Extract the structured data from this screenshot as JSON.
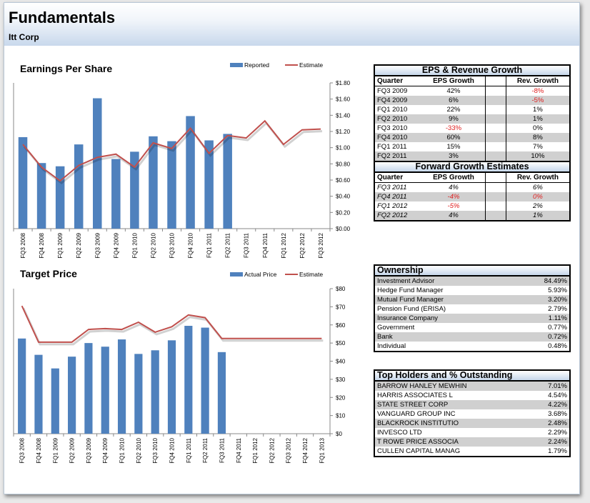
{
  "header": {
    "title": "Fundamentals",
    "subtitle": "Itt Corp"
  },
  "chart_data": [
    {
      "type": "bar",
      "title": "Earnings Per Share",
      "categories": [
        "FQ3 2008",
        "FQ4 2008",
        "FQ1 2009",
        "FQ2 2009",
        "FQ3 2009",
        "FQ4 2009",
        "FQ1 2010",
        "FQ2 2010",
        "FQ3 2010",
        "FQ4 2010",
        "FQ1 2011",
        "FQ2 2011",
        "FQ3 2011",
        "FQ4 2011",
        "FQ1 2012",
        "FQ2 2012",
        "FQ3 2012"
      ],
      "series": [
        {
          "name": "Reported",
          "kind": "bar",
          "color": "#4f81bd",
          "values": [
            1.13,
            0.81,
            0.77,
            1.04,
            1.61,
            0.86,
            0.95,
            1.14,
            1.08,
            1.39,
            1.09,
            1.17,
            null,
            null,
            null,
            null,
            null
          ]
        },
        {
          "name": "Estimate",
          "kind": "line",
          "color": "#c0504d",
          "values": [
            1.04,
            0.76,
            0.59,
            0.78,
            0.88,
            0.92,
            0.76,
            1.06,
            0.99,
            1.24,
            0.93,
            1.15,
            1.12,
            1.33,
            1.04,
            1.22,
            1.23
          ]
        }
      ],
      "ylim": [
        0,
        1.8
      ],
      "ystep": 0.2,
      "ytick_labels": [
        "$0.00",
        "$0.20",
        "$0.40",
        "$0.60",
        "$0.80",
        "$1.00",
        "$1.20",
        "$1.40",
        "$1.60",
        "$1.80"
      ],
      "legend": "top"
    },
    {
      "type": "bar",
      "title": "Target Price",
      "categories": [
        "FQ3 2008",
        "FQ4 2008",
        "FQ1 2009",
        "FQ2 2009",
        "FQ3 2009",
        "FQ4 2009",
        "FQ1 2010",
        "FQ2 2010",
        "FQ3 2010",
        "FQ4 2010",
        "FQ1 2011",
        "FQ2 2011",
        "FQ3 2011",
        "FQ4 2011",
        "FQ1 2012",
        "FQ2 2012",
        "FQ3 2012",
        "FQ4 2012",
        "FQ1 2013"
      ],
      "series": [
        {
          "name": "Actual Price",
          "kind": "bar",
          "color": "#4f81bd",
          "values": [
            52.5,
            43.5,
            36,
            42.5,
            50,
            48,
            52,
            44,
            46,
            51.5,
            59.5,
            58.5,
            45,
            null,
            null,
            null,
            null,
            null,
            null
          ]
        },
        {
          "name": "Estimate",
          "kind": "line",
          "color": "#c0504d",
          "values": [
            70.5,
            50.5,
            50.5,
            50.5,
            57.5,
            58,
            57.5,
            61.5,
            56,
            59,
            65.5,
            64,
            52.5,
            52.5,
            52.5,
            52.5,
            52.5,
            52.5,
            52.5
          ]
        }
      ],
      "ylim": [
        0,
        80
      ],
      "ystep": 10,
      "ytick_labels": [
        "$0",
        "$10",
        "$20",
        "$30",
        "$40",
        "$50",
        "$60",
        "$70",
        "$80"
      ],
      "legend": "top"
    }
  ],
  "eps_table": {
    "title": "EPS & Revenue Growth",
    "headers": [
      "Quarter",
      "EPS Growth",
      "Rev. Growth"
    ],
    "rows": [
      {
        "q": "FQ3 2009",
        "eps": "42%",
        "rev": "-8%",
        "eps_neg": false,
        "rev_neg": true
      },
      {
        "q": "FQ4 2009",
        "eps": "6%",
        "rev": "-5%",
        "eps_neg": false,
        "rev_neg": true
      },
      {
        "q": "FQ1 2010",
        "eps": "22%",
        "rev": "1%",
        "eps_neg": false,
        "rev_neg": false
      },
      {
        "q": "FQ2 2010",
        "eps": "9%",
        "rev": "1%",
        "eps_neg": false,
        "rev_neg": false
      },
      {
        "q": "FQ3 2010",
        "eps": "-33%",
        "rev": "0%",
        "eps_neg": true,
        "rev_neg": false
      },
      {
        "q": "FQ4 2010",
        "eps": "60%",
        "rev": "8%",
        "eps_neg": false,
        "rev_neg": false
      },
      {
        "q": "FQ1 2011",
        "eps": "15%",
        "rev": "7%",
        "eps_neg": false,
        "rev_neg": false
      },
      {
        "q": "FQ2 2011",
        "eps": "3%",
        "rev": "10%",
        "eps_neg": false,
        "rev_neg": false
      }
    ]
  },
  "forward_table": {
    "title": "Forward Growth Estimates",
    "headers": [
      "Quarter",
      "EPS Growth",
      "Rev. Growth"
    ],
    "rows": [
      {
        "q": "FQ3 2011",
        "eps": "4%",
        "rev": "6%",
        "eps_neg": false,
        "rev_neg": false
      },
      {
        "q": "FQ4 2011",
        "eps": "-4%",
        "rev": "0%",
        "eps_neg": true,
        "rev_neg": true
      },
      {
        "q": "FQ1 2012",
        "eps": "-5%",
        "rev": "2%",
        "eps_neg": true,
        "rev_neg": false
      },
      {
        "q": "FQ2 2012",
        "eps": "4%",
        "rev": "1%",
        "eps_neg": false,
        "rev_neg": false
      }
    ]
  },
  "ownership": {
    "title": "Ownership",
    "rows": [
      {
        "name": "Investment Advisor",
        "value": "84.49%"
      },
      {
        "name": "Hedge Fund Manager",
        "value": "5.93%"
      },
      {
        "name": "Mutual Fund Manager",
        "value": "3.20%"
      },
      {
        "name": "Pension Fund (ERISA)",
        "value": "2.79%"
      },
      {
        "name": "Insurance Company",
        "value": "1.11%"
      },
      {
        "name": "Government",
        "value": "0.77%"
      },
      {
        "name": "Bank",
        "value": "0.72%"
      },
      {
        "name": "Individual",
        "value": "0.48%"
      }
    ]
  },
  "holders": {
    "title": "Top Holders and % Outstanding",
    "rows": [
      {
        "name": "BARROW HANLEY MEWHIN",
        "value": "7.01%"
      },
      {
        "name": "HARRIS ASSOCIATES L",
        "value": "4.54%"
      },
      {
        "name": "STATE STREET CORP",
        "value": "4.22%"
      },
      {
        "name": "VANGUARD GROUP INC",
        "value": "3.68%"
      },
      {
        "name": "BLACKROCK INSTITUTIO",
        "value": "2.48%"
      },
      {
        "name": "INVESCO LTD",
        "value": "2.29%"
      },
      {
        "name": "T ROWE PRICE ASSOCIA",
        "value": "2.24%"
      },
      {
        "name": "CULLEN CAPITAL MANAG",
        "value": "1.79%"
      }
    ]
  }
}
